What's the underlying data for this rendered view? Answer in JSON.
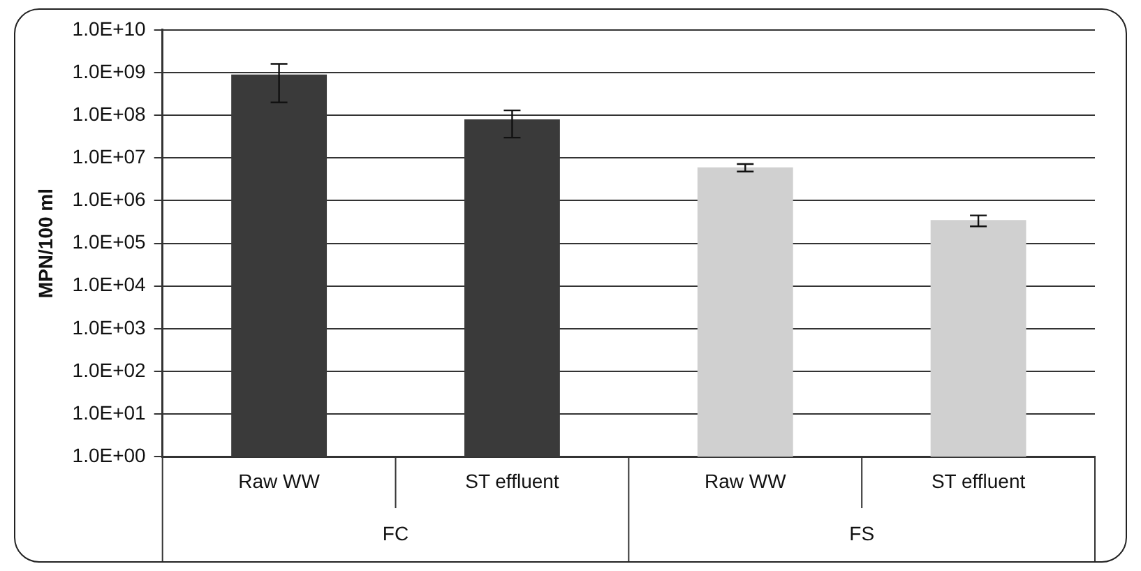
{
  "chart_data": {
    "type": "bar",
    "ylabel": "MPN/100 ml",
    "categories": [
      "Raw WW",
      "ST effluent",
      "Raw WW",
      "ST effluent"
    ],
    "values": [
      900000000,
      80000000,
      6000000,
      350000
    ],
    "errors": [
      700000000,
      50000000,
      1200000,
      100000
    ],
    "colors": [
      "#3a3a3a",
      "#3a3a3a",
      "#d0d0d0",
      "#d0d0d0"
    ],
    "annotations": [
      "FC",
      "FS"
    ],
    "log": "y",
    "ylim": [
      1,
      10000000000
    ],
    "yticks": [
      {
        "value": 1,
        "label": "1.0E+00"
      },
      {
        "value": 10,
        "label": "1.0E+01"
      },
      {
        "value": 100,
        "label": "1.0E+02"
      },
      {
        "value": 1000,
        "label": "1.0E+03"
      },
      {
        "value": 10000,
        "label": "1.0E+04"
      },
      {
        "value": 100000,
        "label": "1.0E+05"
      },
      {
        "value": 1000000,
        "label": "1.0E+06"
      },
      {
        "value": 10000000,
        "label": "1.0E+07"
      },
      {
        "value": 100000000,
        "label": "1.0E+08"
      },
      {
        "value": 1000000000,
        "label": "1.0E+09"
      },
      {
        "value": 10000000000,
        "label": "1.0E+10"
      }
    ],
    "grid": "y",
    "legend": false
  }
}
